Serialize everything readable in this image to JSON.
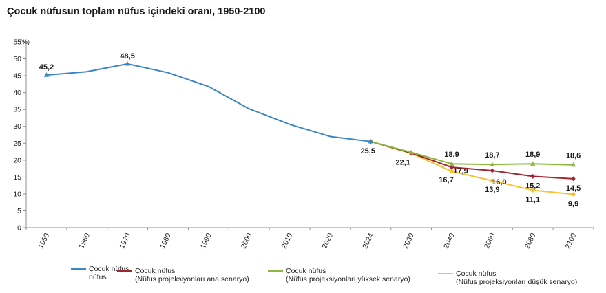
{
  "chart_data": {
    "type": "line",
    "title": "Çocuk nüfusun toplam nüfus içindeki oranı, 1950-2100",
    "ylabel": "(%)",
    "ylim": [
      0,
      55
    ],
    "yticks": [
      "0",
      "5",
      "10",
      "15",
      "20",
      "25",
      "30",
      "35",
      "40",
      "45",
      "50",
      "55"
    ],
    "categories": [
      "1950",
      "1960",
      "1970",
      "1980",
      "1990",
      "2000",
      "2010",
      "2020",
      "2024",
      "2030",
      "2040",
      "2060",
      "2080",
      "2100"
    ],
    "grid": false,
    "legend_position": "bottom",
    "series": [
      {
        "name": "Çocuk nüfus",
        "name_line2": "nüfus",
        "color": "#3b86c5",
        "marker": "triangle",
        "values": [
          45.2,
          46.2,
          48.5,
          45.9,
          41.8,
          35.2,
          30.6,
          27.0,
          25.5,
          null,
          null,
          null,
          null,
          null
        ],
        "labels": {
          "0": "45,2",
          "2": "48,5",
          "8": "25,5"
        }
      },
      {
        "name": "Çocuk nüfus",
        "name_line2": "(Nüfus projeksiyonları ana senaryo)",
        "color": "#a3232f",
        "marker": "diamond",
        "values": [
          null,
          null,
          null,
          null,
          null,
          null,
          null,
          null,
          25.5,
          22.1,
          17.9,
          16.9,
          15.2,
          14.5
        ],
        "labels": {
          "9": "22,1",
          "10": "17,9",
          "11": "16,9",
          "12": "15,2",
          "13": "14,5"
        }
      },
      {
        "name": "Çocuk nüfus",
        "name_line2": "(Nüfus projeksiyonları yüksek senaryo)",
        "color": "#8cb93c",
        "marker": "triangle",
        "values": [
          null,
          null,
          null,
          null,
          null,
          null,
          null,
          null,
          25.5,
          22.3,
          18.9,
          18.7,
          18.9,
          18.6
        ],
        "labels": {
          "10": "18,9",
          "11": "18,7",
          "12": "18,9",
          "13": "18,6"
        }
      },
      {
        "name": "Çocuk nüfus",
        "name_line2": "(Nüfus projeksiyonları düşük senaryo)",
        "color": "#f5c230",
        "marker": "circle",
        "values": [
          null,
          null,
          null,
          null,
          null,
          null,
          null,
          null,
          25.5,
          22.0,
          16.7,
          13.9,
          11.1,
          9.9
        ],
        "labels": {
          "10": "16,7",
          "11": "13,9",
          "12": "11,1",
          "13": "9,9"
        }
      }
    ]
  }
}
